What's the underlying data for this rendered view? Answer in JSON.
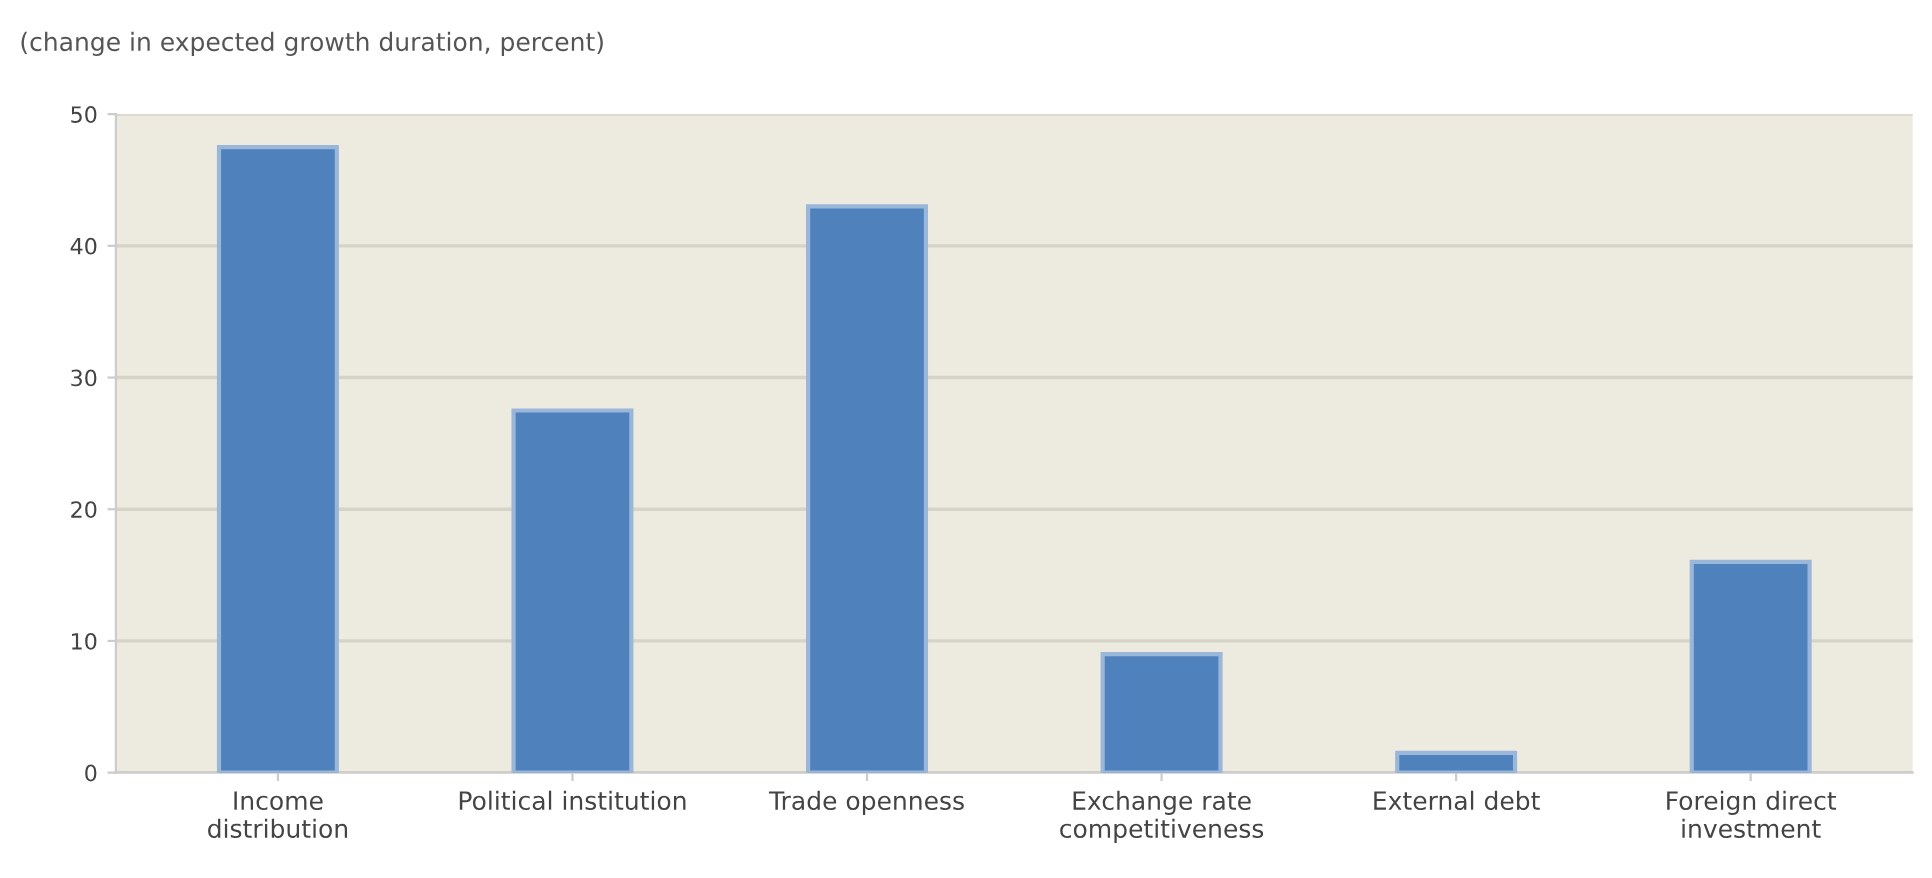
{
  "chart_data": {
    "type": "bar",
    "title": "(change in expected growth duration, percent)",
    "categories": [
      "Income\ndistribution",
      "Political institution",
      "Trade openness",
      "Exchange rate\ncompetitiveness",
      "External debt",
      "Foreign direct\ninvestment"
    ],
    "values": [
      47.5,
      27.5,
      43,
      9,
      1.5,
      16
    ],
    "color": "#4f81bd",
    "ylim": [
      0,
      50
    ],
    "yticks": [
      0,
      10,
      20,
      30,
      40,
      50
    ],
    "grid": "y"
  }
}
